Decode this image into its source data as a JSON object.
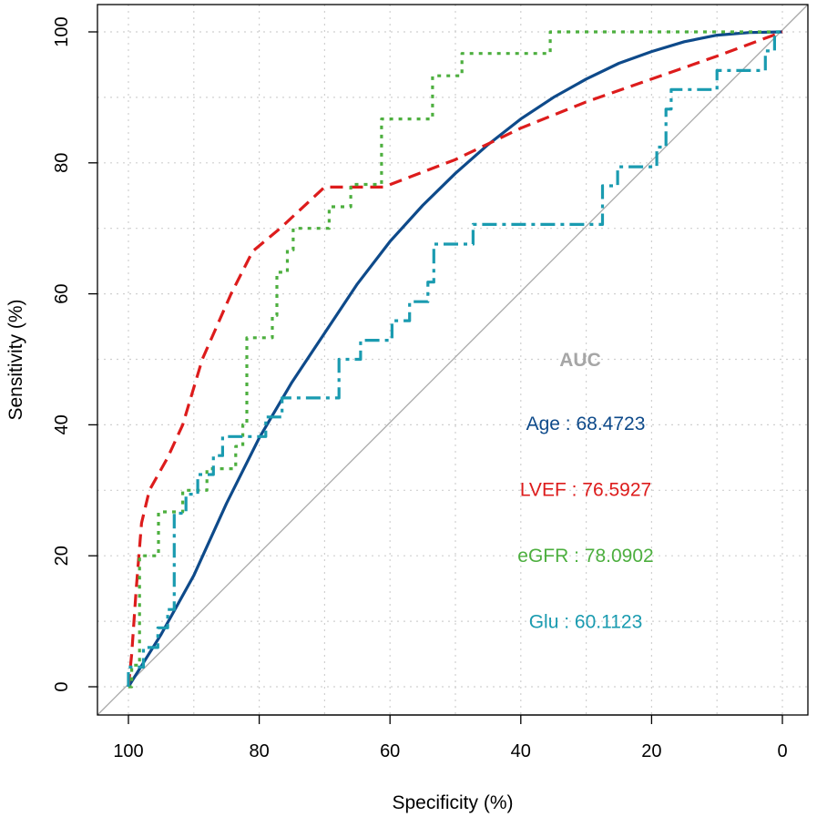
{
  "chart_data": {
    "type": "line",
    "title": "",
    "xlabel": "Specificity (%)",
    "ylabel": "Sensitivity (%)",
    "xlim": [
      100,
      0
    ],
    "ylim": [
      0,
      100
    ],
    "xticks": [
      "100",
      "80",
      "60",
      "40",
      "20",
      "0"
    ],
    "yticks": [
      "0",
      "20",
      "40",
      "60",
      "80",
      "100"
    ],
    "grid": true,
    "reference_line": "diagonal",
    "legend_title": "AUC",
    "legend_title_color": "#a6a6a6",
    "series": [
      {
        "name": "Age",
        "label": "Age : 68.4723",
        "auc": 68.4723,
        "color": "#0e4a8a",
        "style": "solid",
        "points": [
          [
            100,
            0
          ],
          [
            97.5,
            4
          ],
          [
            95,
            8
          ],
          [
            90,
            17
          ],
          [
            85,
            28
          ],
          [
            80,
            38
          ],
          [
            75,
            46.5
          ],
          [
            70,
            54
          ],
          [
            65,
            61.5
          ],
          [
            60,
            68
          ],
          [
            55,
            73.5
          ],
          [
            50,
            78.4
          ],
          [
            45,
            82.8
          ],
          [
            40,
            86.7
          ],
          [
            35,
            90
          ],
          [
            30,
            92.8
          ],
          [
            25,
            95.2
          ],
          [
            20,
            97
          ],
          [
            15,
            98.5
          ],
          [
            10,
            99.5
          ],
          [
            5,
            99.9
          ],
          [
            0,
            100
          ]
        ]
      },
      {
        "name": "LVEF",
        "label": "LVEF : 76.5927",
        "auc": 76.5927,
        "color": "#dd1c1c",
        "style": "dashed",
        "points": [
          [
            100,
            0
          ],
          [
            99.5,
            5
          ],
          [
            98.8,
            15
          ],
          [
            98,
            25
          ],
          [
            96.8,
            30
          ],
          [
            94,
            35
          ],
          [
            91.7,
            40
          ],
          [
            88.7,
            50
          ],
          [
            84.3,
            60
          ],
          [
            81,
            66.5
          ],
          [
            76.8,
            70
          ],
          [
            70,
            76.3
          ],
          [
            61,
            76.3
          ],
          [
            50,
            80.5
          ],
          [
            40,
            85.3
          ],
          [
            30,
            89.3
          ],
          [
            20,
            92.8
          ],
          [
            10,
            96.3
          ],
          [
            0,
            100
          ]
        ]
      },
      {
        "name": "eGFR",
        "label": "eGFR : 78.0902",
        "auc": 78.0902,
        "color": "#4daf3f",
        "style": "dotted",
        "points": [
          [
            100,
            0
          ],
          [
            99.5,
            0
          ],
          [
            99.5,
            3.3
          ],
          [
            98.3,
            3.3
          ],
          [
            98.3,
            20
          ],
          [
            95.4,
            20
          ],
          [
            95.4,
            26.7
          ],
          [
            91.7,
            26.7
          ],
          [
            91.7,
            30
          ],
          [
            88,
            30
          ],
          [
            88,
            33.3
          ],
          [
            83.6,
            33.3
          ],
          [
            83.6,
            36.7
          ],
          [
            82.5,
            36.7
          ],
          [
            82.5,
            40
          ],
          [
            81.9,
            40
          ],
          [
            81.9,
            53.3
          ],
          [
            78,
            53.3
          ],
          [
            78,
            56.7
          ],
          [
            77.3,
            56.7
          ],
          [
            77.3,
            63.3
          ],
          [
            75.7,
            63.3
          ],
          [
            75.7,
            66.7
          ],
          [
            74.8,
            66.7
          ],
          [
            74.8,
            70
          ],
          [
            69.3,
            70
          ],
          [
            69.3,
            73.3
          ],
          [
            66,
            73.3
          ],
          [
            66,
            76.7
          ],
          [
            61.3,
            76.7
          ],
          [
            61.3,
            86.7
          ],
          [
            53.5,
            86.7
          ],
          [
            53.5,
            93.3
          ],
          [
            49,
            93.3
          ],
          [
            49,
            96.7
          ],
          [
            35.5,
            96.7
          ],
          [
            35.5,
            100
          ],
          [
            0,
            100
          ]
        ]
      },
      {
        "name": "Glu",
        "label": "Glu : 60.1123",
        "auc": 60.1123,
        "color": "#1a9bb0",
        "style": "dashdot",
        "points": [
          [
            100,
            0
          ],
          [
            100,
            3
          ],
          [
            97.7,
            3
          ],
          [
            97.7,
            6
          ],
          [
            95.5,
            6
          ],
          [
            95.5,
            9
          ],
          [
            94,
            9
          ],
          [
            94,
            11.8
          ],
          [
            93,
            11.8
          ],
          [
            93,
            26.5
          ],
          [
            91.2,
            26.5
          ],
          [
            91.2,
            29.4
          ],
          [
            89.4,
            29.4
          ],
          [
            89.4,
            32.4
          ],
          [
            87,
            32.4
          ],
          [
            87,
            35.3
          ],
          [
            85.6,
            35.3
          ],
          [
            85.6,
            38.2
          ],
          [
            79,
            38.2
          ],
          [
            79,
            41.2
          ],
          [
            76.5,
            41.2
          ],
          [
            76.5,
            44.1
          ],
          [
            67.8,
            44.1
          ],
          [
            67.8,
            50
          ],
          [
            64.5,
            50
          ],
          [
            64.5,
            52.9
          ],
          [
            59.7,
            52.9
          ],
          [
            59.7,
            55.9
          ],
          [
            57,
            55.9
          ],
          [
            57,
            58.8
          ],
          [
            54.2,
            58.8
          ],
          [
            54.2,
            61.8
          ],
          [
            53.3,
            61.8
          ],
          [
            53.3,
            67.6
          ],
          [
            47.3,
            67.6
          ],
          [
            47.3,
            70.6
          ],
          [
            27.5,
            70.6
          ],
          [
            27.5,
            76.5
          ],
          [
            25.2,
            76.5
          ],
          [
            25.2,
            79.4
          ],
          [
            19.2,
            79.4
          ],
          [
            19.2,
            82.4
          ],
          [
            17.8,
            82.4
          ],
          [
            17.8,
            88.2
          ],
          [
            17,
            88.2
          ],
          [
            17,
            91.2
          ],
          [
            10,
            91.2
          ],
          [
            10,
            94.1
          ],
          [
            2.6,
            94.1
          ],
          [
            2.6,
            97.1
          ],
          [
            1.2,
            97.1
          ],
          [
            1.2,
            100
          ],
          [
            0,
            100
          ]
        ]
      }
    ]
  }
}
